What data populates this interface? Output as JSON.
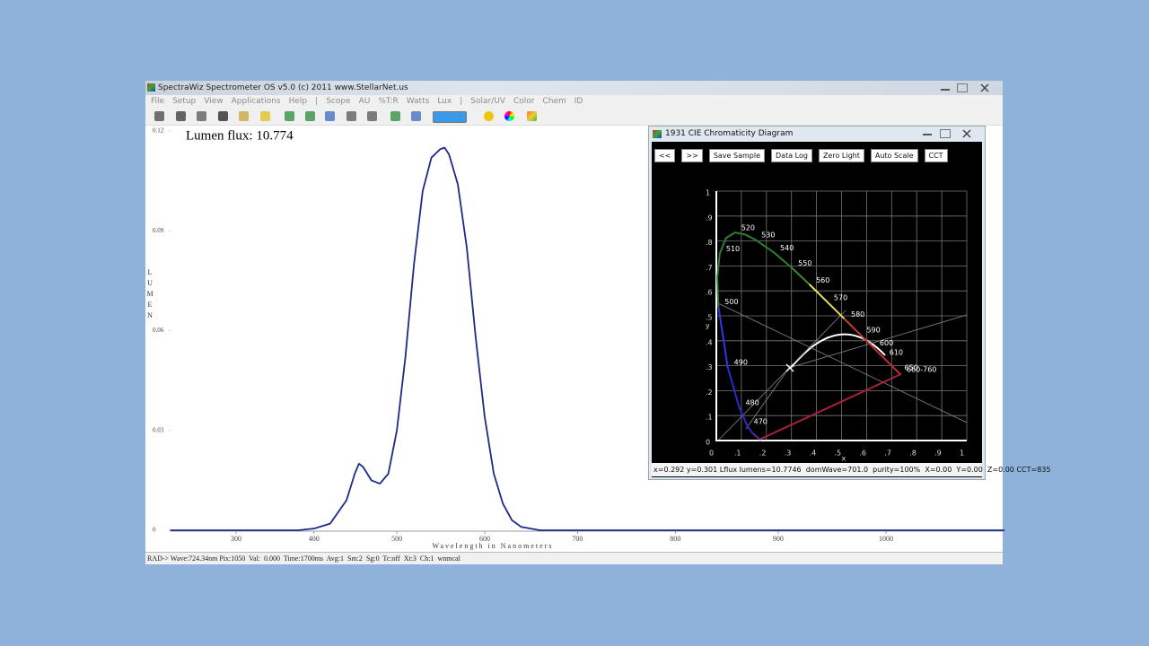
{
  "window": {
    "title": "SpectraWiz  Spectrometer OS v5.0 (c) 2011    www.StellarNet.us",
    "menus": [
      "File",
      "Setup",
      "View",
      "Applications",
      "Help",
      "|",
      "Scope",
      "AU",
      "%T:R",
      "Watts",
      "Lux",
      "|",
      "Solar/UV",
      "Color",
      "Chem",
      "ID"
    ],
    "status": "RAD-> Wave:724.34nm Pix:1050  Val:  0.000  Time:1700ms  Avg:1  Sm:2  Sg:0  Tc:off  Xt:3  Ch:1  wnmcal"
  },
  "chart_data": {
    "type": "line",
    "annotation": "Lumen flux:  10.774",
    "x_label": "Wavelength in Nanometers",
    "y_label": "LUMEN",
    "color": "#1c2a86",
    "x": [
      210,
      380,
      400,
      420,
      440,
      450,
      455,
      460,
      470,
      480,
      490,
      500,
      510,
      520,
      530,
      540,
      550,
      555,
      560,
      570,
      580,
      590,
      600,
      610,
      620,
      630,
      640,
      660,
      1105
    ],
    "values": [
      0,
      0,
      0.0005,
      0.002,
      0.009,
      0.017,
      0.02,
      0.019,
      0.015,
      0.014,
      0.017,
      0.03,
      0.052,
      0.08,
      0.102,
      0.112,
      0.1145,
      0.115,
      0.113,
      0.104,
      0.085,
      0.058,
      0.034,
      0.017,
      0.008,
      0.003,
      0.001,
      0,
      0
    ],
    "xlim": [
      210,
      1105
    ],
    "ylim": [
      0,
      0.12
    ],
    "xticks": [
      300,
      400,
      500,
      600,
      700,
      800,
      900,
      1000
    ],
    "yticks": [
      0,
      0.03,
      0.06,
      0.09,
      0.12
    ]
  },
  "cie_window": {
    "title": "1931 CIE Chromaticity Diagram",
    "buttons": [
      "<<",
      ">>",
      "Save Sample",
      "Data Log",
      "Zero Light",
      "Auto Scale",
      "CCT"
    ],
    "x_label": "x",
    "y_label": "y",
    "xlim": [
      0,
      1
    ],
    "ylim": [
      0,
      1
    ],
    "xticks": [
      0,
      {
        "value": 0.1,
        "label": ".1"
      },
      {
        "value": 0.2,
        "label": ".2"
      },
      {
        "value": 0.3,
        "label": ".3"
      },
      {
        "value": 0.4,
        "label": ".4"
      },
      {
        "value": 0.5,
        "label": ".5"
      },
      {
        "value": 0.6,
        "label": ".6"
      },
      {
        "value": 0.7,
        "label": ".7"
      },
      {
        "value": 0.8,
        "label": ".8"
      },
      {
        "value": 0.9,
        "label": ".9"
      },
      1
    ],
    "yticks": [
      0,
      {
        "value": 0.1,
        "label": ".1"
      },
      {
        "value": 0.2,
        "label": ".2"
      },
      {
        "value": 0.3,
        "label": ".3"
      },
      {
        "value": 0.4,
        "label": ".4"
      },
      {
        "value": 0.5,
        "label": ".5"
      },
      {
        "value": 0.6,
        "label": ".6"
      },
      {
        "value": 0.7,
        "label": ".7"
      },
      {
        "value": 0.8,
        "label": ".8"
      },
      {
        "value": 0.9,
        "label": ".9"
      },
      1
    ],
    "locus": {
      "x": [
        0.1741,
        0.144,
        0.1241,
        0.0913,
        0.0454,
        0.0082,
        0.0039,
        0.0139,
        0.0389,
        0.0743,
        0.1142,
        0.1547,
        0.2296,
        0.3016,
        0.3731,
        0.4441,
        0.5125,
        0.5752,
        0.627,
        0.6658,
        0.726,
        0.7347
      ],
      "y": [
        0.005,
        0.0297,
        0.0578,
        0.1327,
        0.295,
        0.5384,
        0.6548,
        0.7502,
        0.812,
        0.8338,
        0.8262,
        0.8059,
        0.7543,
        0.6923,
        0.6245,
        0.5547,
        0.4866,
        0.4242,
        0.3725,
        0.334,
        0.274,
        0.2653
      ],
      "labels": [
        null,
        null,
        "470",
        "480",
        "490",
        "500",
        null,
        "510",
        null,
        "520",
        null,
        "530",
        "540",
        "550",
        "560",
        "570",
        "580",
        "590",
        "600",
        "610",
        "650",
        "660-760"
      ],
      "segment_colors": [
        "#5a2a9a",
        "#2a2ad0",
        "#2a2ad0",
        "#2a2ad0",
        "#2a3ae0",
        "#2e7d32",
        "#2e7d32",
        "#2e7d32",
        "#2e7d32",
        "#2e7d32",
        "#2e7d32",
        "#2e7d32",
        "#2e7d32",
        "#3a8a32",
        "#e8e060",
        "#e8d860",
        "#c0402a",
        "#c0302a",
        "#c0302a",
        "#c0302a",
        "#c0302a"
      ]
    },
    "purple_line_color": "#a8203a",
    "status": "x=0.292 y=0.301 Lflux lumens=10.7746  domWave=701.0  purity=100%  X=0.00  Y=0.00  Z=0.00 CCT=835"
  }
}
